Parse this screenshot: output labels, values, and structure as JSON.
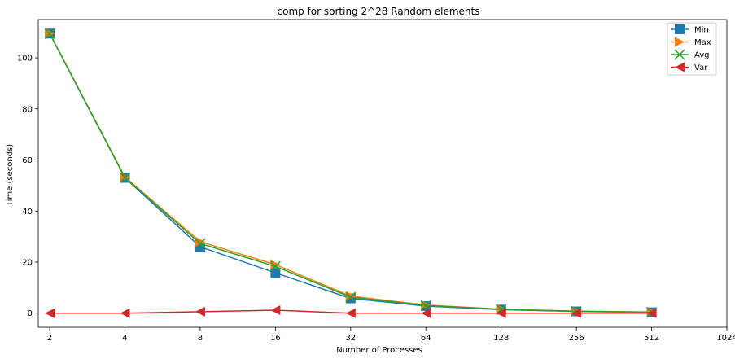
{
  "chart_data": {
    "type": "line",
    "title": "comp for sorting 2^28 Random elements",
    "xlabel": "Number of Processes",
    "ylabel": "Time (seconds)",
    "x_scale": "log2",
    "x_ticks": [
      2,
      4,
      8,
      16,
      32,
      64,
      128,
      256,
      512,
      1024
    ],
    "x_tick_labels": [
      "2",
      "4",
      "8",
      "16",
      "32",
      "64",
      "128",
      "256",
      "512",
      "1024"
    ],
    "y_ticks": [
      0,
      20,
      40,
      60,
      80,
      100
    ],
    "y_tick_labels": [
      "0",
      "20",
      "40",
      "60",
      "80",
      "100"
    ],
    "xlim": [
      1.8,
      1024
    ],
    "ylim": [
      -5.5,
      115
    ],
    "grid": false,
    "legend_position": "top-right",
    "x": [
      2,
      4,
      8,
      16,
      32,
      64,
      128,
      256,
      512
    ],
    "series": [
      {
        "name": "Min",
        "color": "#1f77b4",
        "marker": "square",
        "values": [
          109.5,
          53.0,
          26.0,
          15.8,
          5.8,
          2.8,
          1.4,
          0.7,
          0.35
        ]
      },
      {
        "name": "Max",
        "color": "#ff7f0e",
        "marker": "triangle-right",
        "values": [
          109.6,
          53.3,
          28.0,
          19.0,
          6.7,
          3.2,
          1.6,
          0.8,
          0.45
        ]
      },
      {
        "name": "Avg",
        "color": "#2ca02c",
        "marker": "x",
        "values": [
          109.5,
          53.1,
          27.3,
          18.3,
          6.3,
          3.0,
          1.5,
          0.75,
          0.4
        ]
      },
      {
        "name": "Var",
        "color": "#d62728",
        "marker": "triangle-left",
        "values": [
          0.0,
          0.0,
          0.6,
          1.2,
          0.0,
          0.0,
          0.0,
          0.0,
          0.0
        ]
      }
    ]
  }
}
